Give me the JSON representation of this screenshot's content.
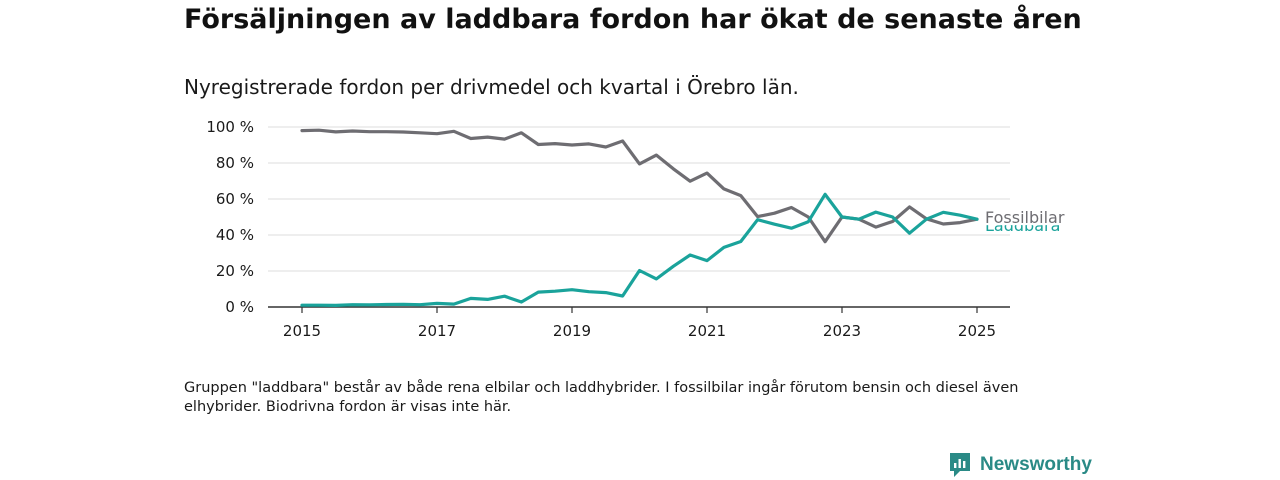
{
  "header": {
    "title": "Försäljningen av laddbara fordon har ökat de senaste åren",
    "subtitle": "Nyregistrerade fordon per drivmedel och kvartal i Örebro län."
  },
  "footnote": "Gruppen \"laddbara\" består av både rena elbilar och laddhybrider. I fossilbilar ingår förutom bensin och diesel även elhybrider. Biodrivna fordon är visas inte här.",
  "brand": {
    "name": "Newsworthy",
    "color": "#2a8a86"
  },
  "chart_data": {
    "type": "line",
    "title": "",
    "xlabel": "",
    "ylabel": "",
    "x_ticks": [
      "2015",
      "2017",
      "2019",
      "2021",
      "2023",
      "2025"
    ],
    "y_ticks": [
      "0 %",
      "20 %",
      "40 %",
      "60 %",
      "80 %",
      "100 %"
    ],
    "xlim": [
      2015,
      2025.5
    ],
    "ylim": [
      0,
      100
    ],
    "grid": true,
    "x": [
      2015.0,
      2015.25,
      2015.5,
      2015.75,
      2016.0,
      2016.25,
      2016.5,
      2016.75,
      2017.0,
      2017.25,
      2017.5,
      2017.75,
      2018.0,
      2018.25,
      2018.5,
      2018.75,
      2019.0,
      2019.25,
      2019.5,
      2019.75,
      2020.0,
      2020.25,
      2020.5,
      2020.75,
      2021.0,
      2021.25,
      2021.5,
      2021.75,
      2022.0,
      2022.25,
      2022.5,
      2022.75,
      2023.0,
      2023.25,
      2023.5,
      2023.75,
      2024.0,
      2024.25,
      2024.5,
      2024.75,
      2025.0
    ],
    "series": [
      {
        "name": "Fossilbilar",
        "color": "#6e6d72",
        "values": [
          98.0,
          98.2,
          97.3,
          97.8,
          97.4,
          97.4,
          97.2,
          96.8,
          96.3,
          97.6,
          93.6,
          94.4,
          93.3,
          96.8,
          90.3,
          90.8,
          90.0,
          90.6,
          88.9,
          92.2,
          79.5,
          84.4,
          76.8,
          69.9,
          74.4,
          65.6,
          61.9,
          50.2,
          52.1,
          55.3,
          50.0,
          36.3,
          50.0,
          48.8,
          44.4,
          47.5,
          55.6,
          49.0,
          46.1,
          46.9,
          48.8
        ]
      },
      {
        "name": "Laddbara",
        "color": "#1aa39b",
        "values": [
          1.0,
          1.0,
          0.9,
          1.3,
          1.2,
          1.4,
          1.5,
          1.3,
          2.0,
          1.6,
          4.8,
          4.2,
          6.0,
          2.8,
          8.3,
          8.8,
          9.6,
          8.5,
          8.0,
          6.1,
          20.3,
          15.6,
          22.6,
          28.9,
          25.8,
          33.1,
          36.4,
          48.5,
          46.0,
          43.8,
          47.4,
          62.6,
          50.0,
          48.8,
          52.7,
          50.0,
          41.0,
          48.8,
          52.6,
          51.0,
          48.8
        ]
      }
    ],
    "end_labels": {
      "Fossilbilar": "Fossilbilar",
      "Laddbara": "Laddbara"
    }
  }
}
